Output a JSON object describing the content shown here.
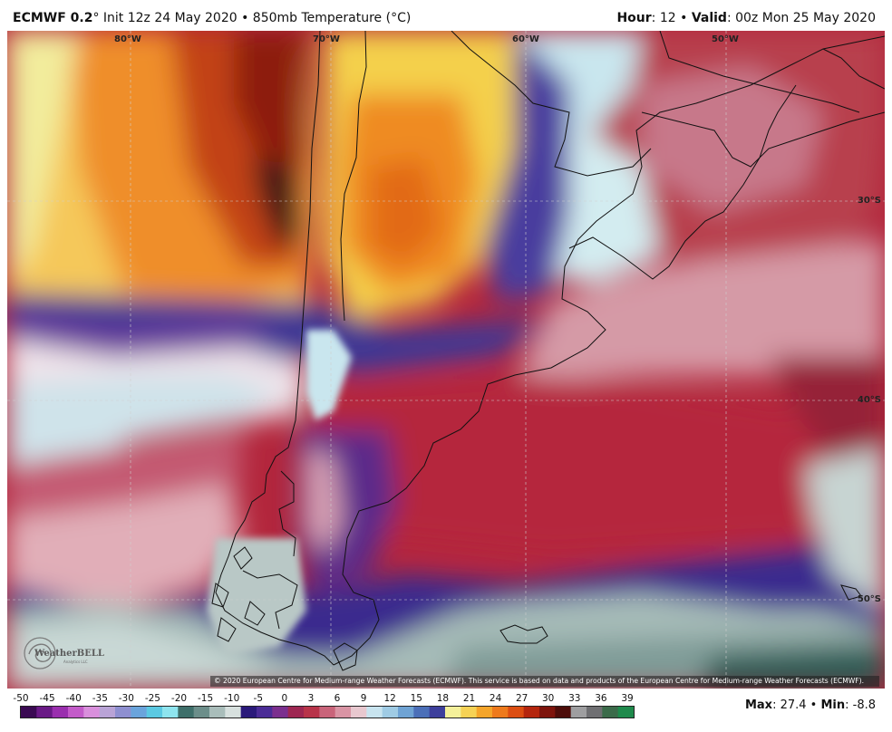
{
  "header": {
    "model": "ECMWF 0.2",
    "init_text": "° Init 12z 24 May 2020 • 850mb Temperature (°C)",
    "hour_label": "Hour",
    "hour_value": ": 12 • ",
    "valid_label": "Valid",
    "valid_value": ": 00z Mon 25 May 2020"
  },
  "map": {
    "longitude_labels": [
      "80°W",
      "70°W",
      "60°W",
      "50°W"
    ],
    "latitude_labels": [
      "30°S",
      "40°S",
      "50°S"
    ],
    "copyright": "© 2020 European Centre for Medium-range Weather Forecasts (ECMWF). This service is based on data and products of the European Centre for Medium-range Weather Forecasts (ECMWF).",
    "logo_text": "WeatherBELL",
    "logo_sub": "Analytics LLC"
  },
  "legend": {
    "ticks": [
      "-50",
      "-45",
      "-40",
      "-35",
      "-30",
      "-25",
      "-20",
      "-15",
      "-10",
      "-5",
      "0",
      "3",
      "6",
      "9",
      "12",
      "15",
      "18",
      "21",
      "24",
      "27",
      "30",
      "33",
      "36",
      "39"
    ],
    "colors": [
      "#3a0a52",
      "#6a1a86",
      "#9a2fae",
      "#c35bc9",
      "#d98fdc",
      "#b9a3d6",
      "#8e8fd0",
      "#6aa4dc",
      "#5bc9e2",
      "#8ee4ee",
      "#3e6f6a",
      "#6c8e8a",
      "#a9bdba",
      "#d7e0de",
      "#2a1a7a",
      "#4b2c96",
      "#7b2f8e",
      "#9e2752",
      "#b8344a",
      "#c9647a",
      "#d994a4",
      "#e8c8cf",
      "#c8e4ef",
      "#9fcbe4",
      "#6fa3d4",
      "#4b6fb8",
      "#3d3f9c",
      "#f4f09a",
      "#f6d255",
      "#f5a52a",
      "#ee7a1c",
      "#dc4e12",
      "#b4260e",
      "#7e140c",
      "#4d0d0a",
      "#9e9ea0",
      "#6f6f72",
      "#3b6b4a",
      "#1f8a4c"
    ]
  },
  "stats": {
    "max_label": "Max",
    "max_value": ": 27.4 • ",
    "min_label": "Min",
    "min_value": ": -8.8"
  }
}
